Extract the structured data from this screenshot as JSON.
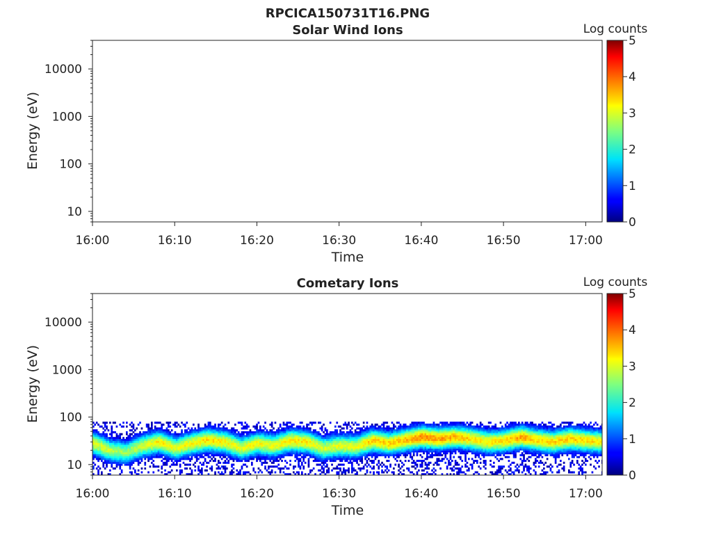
{
  "figure": {
    "title": "RPCICA150731T16.PNG"
  },
  "chart_data": [
    {
      "type": "heatmap",
      "title": "Solar Wind Ions",
      "xlabel": "Time",
      "ylabel": "Energy (eV)",
      "xticks": [
        "16:00",
        "16:10",
        "16:20",
        "16:30",
        "16:40",
        "16:50",
        "17:00"
      ],
      "xlim": [
        "16:00",
        "17:02"
      ],
      "yscale": "log",
      "yticks": [
        "10",
        "100",
        "1000",
        "10000"
      ],
      "ylim": [
        6,
        40000
      ],
      "colorbar": {
        "title": "Log counts",
        "ticks": [
          "0",
          "1",
          "2",
          "3",
          "4",
          "5"
        ],
        "range": [
          0,
          5
        ],
        "colormap": "jet"
      },
      "data_description": "empty",
      "band": []
    },
    {
      "type": "heatmap",
      "title": "Cometary Ions",
      "xlabel": "Time",
      "ylabel": "Energy (eV)",
      "xticks": [
        "16:00",
        "16:10",
        "16:20",
        "16:30",
        "16:40",
        "16:50",
        "17:00"
      ],
      "xlim": [
        "16:00",
        "17:02"
      ],
      "yscale": "log",
      "yticks": [
        "10",
        "100",
        "1000",
        "10000"
      ],
      "ylim": [
        6,
        40000
      ],
      "colorbar": {
        "title": "Log counts",
        "ticks": [
          "0",
          "1",
          "2",
          "3",
          "4",
          "5"
        ],
        "range": [
          0,
          5
        ],
        "colormap": "jet"
      },
      "noise_upper_energy": 80,
      "band": [
        {
          "t": "16:00",
          "peak_energy": 28,
          "peak_log_counts": 3.0
        },
        {
          "t": "16:02",
          "peak_energy": 20,
          "peak_log_counts": 2.8
        },
        {
          "t": "16:04",
          "peak_energy": 18,
          "peak_log_counts": 2.6
        },
        {
          "t": "16:06",
          "peak_energy": 25,
          "peak_log_counts": 2.9
        },
        {
          "t": "16:08",
          "peak_energy": 30,
          "peak_log_counts": 3.2
        },
        {
          "t": "16:10",
          "peak_energy": 22,
          "peak_log_counts": 3.0
        },
        {
          "t": "16:12",
          "peak_energy": 28,
          "peak_log_counts": 3.1
        },
        {
          "t": "16:14",
          "peak_energy": 33,
          "peak_log_counts": 3.3
        },
        {
          "t": "16:16",
          "peak_energy": 30,
          "peak_log_counts": 3.2
        },
        {
          "t": "16:18",
          "peak_energy": 22,
          "peak_log_counts": 3.0
        },
        {
          "t": "16:20",
          "peak_energy": 28,
          "peak_log_counts": 3.1
        },
        {
          "t": "16:22",
          "peak_energy": 25,
          "peak_log_counts": 3.0
        },
        {
          "t": "16:24",
          "peak_energy": 32,
          "peak_log_counts": 3.3
        },
        {
          "t": "16:26",
          "peak_energy": 30,
          "peak_log_counts": 3.2
        },
        {
          "t": "16:28",
          "peak_energy": 22,
          "peak_log_counts": 2.9
        },
        {
          "t": "16:30",
          "peak_energy": 25,
          "peak_log_counts": 3.0
        },
        {
          "t": "16:32",
          "peak_energy": 24,
          "peak_log_counts": 3.0
        },
        {
          "t": "16:34",
          "peak_energy": 32,
          "peak_log_counts": 3.4
        },
        {
          "t": "16:36",
          "peak_energy": 28,
          "peak_log_counts": 3.3
        },
        {
          "t": "16:38",
          "peak_energy": 33,
          "peak_log_counts": 3.5
        },
        {
          "t": "16:40",
          "peak_energy": 38,
          "peak_log_counts": 3.7
        },
        {
          "t": "16:42",
          "peak_energy": 35,
          "peak_log_counts": 3.6
        },
        {
          "t": "16:44",
          "peak_energy": 38,
          "peak_log_counts": 3.5
        },
        {
          "t": "16:46",
          "peak_energy": 35,
          "peak_log_counts": 3.3
        },
        {
          "t": "16:48",
          "peak_energy": 30,
          "peak_log_counts": 3.2
        },
        {
          "t": "16:50",
          "peak_energy": 32,
          "peak_log_counts": 3.3
        },
        {
          "t": "16:52",
          "peak_energy": 38,
          "peak_log_counts": 3.6
        },
        {
          "t": "16:54",
          "peak_energy": 33,
          "peak_log_counts": 3.3
        },
        {
          "t": "16:56",
          "peak_energy": 30,
          "peak_log_counts": 3.3
        },
        {
          "t": "16:58",
          "peak_energy": 35,
          "peak_log_counts": 3.4
        },
        {
          "t": "17:00",
          "peak_energy": 32,
          "peak_log_counts": 3.3
        },
        {
          "t": "17:02",
          "peak_energy": 30,
          "peak_log_counts": 3.2
        }
      ]
    }
  ]
}
